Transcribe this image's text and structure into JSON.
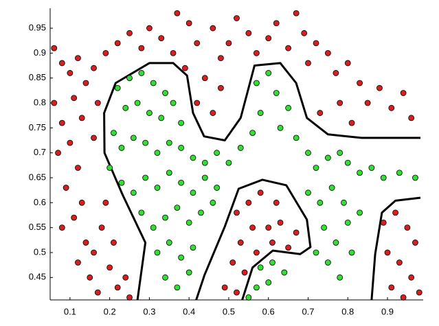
{
  "chart_data": {
    "type": "scatter",
    "xlim": [
      0.05,
      0.99
    ],
    "ylim": [
      0.405,
      0.99
    ],
    "xticks": [
      0.1,
      0.2,
      0.3,
      0.4,
      0.5,
      0.6,
      0.7,
      0.8,
      0.9
    ],
    "yticks": [
      0.45,
      0.5,
      0.55,
      0.6,
      0.65,
      0.7,
      0.75,
      0.8,
      0.85,
      0.9,
      0.95
    ],
    "series": [
      {
        "color": "#d42020",
        "x": [
          0.06,
          0.08,
          0.1,
          0.12,
          0.14,
          0.16,
          0.19,
          0.22,
          0.25,
          0.28,
          0.3,
          0.33,
          0.37,
          0.36,
          0.4,
          0.42,
          0.44,
          0.46,
          0.48,
          0.5,
          0.52,
          0.55,
          0.57,
          0.6,
          0.62,
          0.65,
          0.67,
          0.69,
          0.7,
          0.72,
          0.75,
          0.77,
          0.8,
          0.83,
          0.85,
          0.88,
          0.91,
          0.94,
          0.96,
          0.73,
          0.78,
          0.81,
          0.42,
          0.46,
          0.48,
          0.39,
          0.06,
          0.08,
          0.1,
          0.07,
          0.12,
          0.09,
          0.13,
          0.11,
          0.08,
          0.14,
          0.12,
          0.16,
          0.18,
          0.15,
          0.2,
          0.17,
          0.22,
          0.13,
          0.16,
          0.17,
          0.11,
          0.19,
          0.21,
          0.24,
          0.25,
          0.52,
          0.55,
          0.58,
          0.62,
          0.63,
          0.6,
          0.56,
          0.53,
          0.51,
          0.54,
          0.57,
          0.61,
          0.65,
          0.67,
          0.49,
          0.52,
          0.89,
          0.92,
          0.95,
          0.97,
          0.9,
          0.93,
          0.96,
          0.98,
          0.91,
          0.94
        ],
        "y": [
          0.91,
          0.88,
          0.86,
          0.89,
          0.84,
          0.87,
          0.9,
          0.92,
          0.94,
          0.91,
          0.95,
          0.93,
          0.98,
          0.9,
          0.96,
          0.92,
          0.85,
          0.95,
          0.89,
          0.92,
          0.97,
          0.94,
          0.9,
          0.93,
          0.96,
          0.91,
          0.98,
          0.94,
          0.88,
          0.92,
          0.9,
          0.86,
          0.88,
          0.84,
          0.8,
          0.83,
          0.79,
          0.82,
          0.77,
          0.78,
          0.8,
          0.76,
          0.8,
          0.78,
          0.83,
          0.87,
          0.8,
          0.76,
          0.72,
          0.7,
          0.67,
          0.63,
          0.6,
          0.57,
          0.55,
          0.52,
          0.48,
          0.5,
          0.55,
          0.45,
          0.47,
          0.42,
          0.43,
          0.77,
          0.73,
          0.8,
          0.81,
          0.6,
          0.52,
          0.45,
          0.41,
          0.58,
          0.6,
          0.62,
          0.6,
          0.56,
          0.55,
          0.55,
          0.52,
          0.48,
          0.46,
          0.5,
          0.52,
          0.51,
          0.54,
          0.43,
          0.42,
          0.56,
          0.58,
          0.55,
          0.52,
          0.5,
          0.48,
          0.45,
          0.42,
          0.43,
          0.41
        ]
      },
      {
        "color": "#33dd33",
        "x": [
          0.22,
          0.25,
          0.28,
          0.31,
          0.34,
          0.24,
          0.27,
          0.3,
          0.33,
          0.36,
          0.38,
          0.21,
          0.23,
          0.26,
          0.29,
          0.32,
          0.35,
          0.38,
          0.41,
          0.44,
          0.47,
          0.5,
          0.53,
          0.56,
          0.58,
          0.57,
          0.6,
          0.62,
          0.65,
          0.63,
          0.67,
          0.7,
          0.72,
          0.75,
          0.78,
          0.8,
          0.83,
          0.86,
          0.89,
          0.93,
          0.97,
          0.2,
          0.23,
          0.26,
          0.29,
          0.32,
          0.35,
          0.38,
          0.41,
          0.44,
          0.47,
          0.28,
          0.31,
          0.34,
          0.37,
          0.4,
          0.43,
          0.46,
          0.32,
          0.35,
          0.38,
          0.41,
          0.34,
          0.37,
          0.4,
          0.7,
          0.73,
          0.76,
          0.79,
          0.74,
          0.77,
          0.8,
          0.83,
          0.75,
          0.78,
          0.81,
          0.72,
          0.58,
          0.61,
          0.64,
          0.57,
          0.6,
          0.55
        ],
        "y": [
          0.83,
          0.85,
          0.86,
          0.84,
          0.82,
          0.79,
          0.8,
          0.78,
          0.77,
          0.8,
          0.76,
          0.74,
          0.71,
          0.73,
          0.72,
          0.7,
          0.72,
          0.71,
          0.69,
          0.68,
          0.7,
          0.68,
          0.71,
          0.74,
          0.78,
          0.84,
          0.86,
          0.82,
          0.79,
          0.75,
          0.73,
          0.7,
          0.67,
          0.69,
          0.7,
          0.68,
          0.66,
          0.67,
          0.65,
          0.66,
          0.65,
          0.67,
          0.64,
          0.62,
          0.65,
          0.63,
          0.66,
          0.64,
          0.62,
          0.65,
          0.63,
          0.58,
          0.55,
          0.57,
          0.59,
          0.56,
          0.58,
          0.6,
          0.5,
          0.52,
          0.49,
          0.51,
          0.45,
          0.43,
          0.46,
          0.62,
          0.6,
          0.63,
          0.6,
          0.55,
          0.52,
          0.56,
          0.58,
          0.48,
          0.45,
          0.5,
          0.5,
          0.47,
          0.48,
          0.46,
          0.43,
          0.44,
          0.41
        ]
      }
    ],
    "boundaries": [
      {
        "color": "#000000",
        "x": [
          0.27,
          0.29,
          0.233,
          0.187,
          0.186,
          0.215,
          0.3,
          0.36,
          0.395,
          0.41,
          0.438,
          0.49,
          0.53,
          0.565,
          0.63,
          0.67,
          0.697,
          0.75,
          0.835,
          0.983
        ],
        "y": [
          0.405,
          0.52,
          0.615,
          0.7,
          0.78,
          0.84,
          0.88,
          0.88,
          0.855,
          0.78,
          0.733,
          0.725,
          0.77,
          0.875,
          0.88,
          0.84,
          0.77,
          0.737,
          0.73,
          0.73
        ]
      },
      {
        "color": "#000000",
        "x": [
          0.418,
          0.439,
          0.49,
          0.525,
          0.585,
          0.645,
          0.697,
          0.706,
          0.68,
          0.611,
          0.56,
          0.534
        ],
        "y": [
          0.405,
          0.455,
          0.552,
          0.628,
          0.646,
          0.635,
          0.566,
          0.511,
          0.497,
          0.504,
          0.47,
          0.405
        ]
      },
      {
        "color": "#000000",
        "x": [
          0.86,
          0.869,
          0.886,
          0.92,
          0.983
        ],
        "y": [
          0.405,
          0.497,
          0.58,
          0.604,
          0.61
        ]
      }
    ]
  }
}
